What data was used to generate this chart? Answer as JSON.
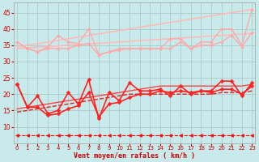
{
  "x": [
    0,
    1,
    2,
    3,
    4,
    5,
    6,
    7,
    8,
    9,
    10,
    11,
    12,
    13,
    14,
    15,
    16,
    17,
    18,
    19,
    20,
    21,
    22,
    23
  ],
  "series": [
    {
      "name": "pink_noisy_upper",
      "y": [
        36,
        34,
        33,
        34.5,
        38,
        36,
        35.5,
        40,
        32,
        33,
        34,
        34,
        34,
        34,
        34,
        37,
        37,
        34,
        36,
        36,
        40,
        40,
        35,
        46
      ],
      "color": "#ffaaaa",
      "lw": 1.0,
      "marker": "D",
      "ms": 2.0,
      "ls": "-",
      "zorder": 3
    },
    {
      "name": "pink_trend_upper",
      "y": [
        34.5,
        35.0,
        35.5,
        36.0,
        36.5,
        37.0,
        37.5,
        38.0,
        38.5,
        39.0,
        39.5,
        40.0,
        40.5,
        41.0,
        41.5,
        42.0,
        42.5,
        43.0,
        43.5,
        44.0,
        44.5,
        45.0,
        45.5,
        46.0
      ],
      "color": "#ffbbbb",
      "lw": 1.2,
      "marker": null,
      "ms": 0,
      "ls": "-",
      "zorder": 2
    },
    {
      "name": "pink_noisy_lower",
      "y": [
        36,
        34,
        33,
        34,
        34,
        34,
        35,
        35.5,
        32,
        33,
        33.5,
        34,
        34,
        34,
        34,
        34,
        36,
        34,
        35,
        35,
        36,
        38,
        34.5,
        39
      ],
      "color": "#ffaaaa",
      "lw": 1.0,
      "marker": "D",
      "ms": 2.0,
      "ls": "-",
      "zorder": 3
    },
    {
      "name": "pink_trend_lower",
      "y": [
        34.0,
        34.2,
        34.4,
        34.6,
        34.8,
        35.0,
        35.2,
        35.4,
        35.6,
        35.8,
        36.0,
        36.2,
        36.4,
        36.6,
        36.8,
        37.0,
        37.2,
        37.4,
        37.6,
        37.8,
        38.0,
        38.2,
        38.4,
        38.6
      ],
      "color": "#ffbbbb",
      "lw": 1.2,
      "marker": null,
      "ms": 0,
      "ls": "-",
      "zorder": 2
    },
    {
      "name": "red_noisy_upper",
      "y": [
        23,
        16,
        19.5,
        14,
        15,
        20.5,
        17,
        24.5,
        12.5,
        20.5,
        18,
        23.5,
        21,
        21,
        21.5,
        19.5,
        22.5,
        20,
        21,
        21,
        24,
        24,
        19.5,
        23.5
      ],
      "color": "#ff2222",
      "lw": 1.2,
      "marker": "D",
      "ms": 2.5,
      "ls": "-",
      "zorder": 4
    },
    {
      "name": "red_noisy_lower",
      "y": [
        23,
        16,
        16,
        13.5,
        14,
        15.5,
        16.5,
        20.5,
        13,
        17,
        17.5,
        19,
        20,
        20,
        21,
        20.5,
        21,
        20.5,
        21,
        20.5,
        21.5,
        21.5,
        20,
        22.5
      ],
      "color": "#ff2222",
      "lw": 1.2,
      "marker": "D",
      "ms": 2.5,
      "ls": "-",
      "zorder": 4
    },
    {
      "name": "red_trend_upper",
      "y": [
        15.5,
        16.0,
        16.5,
        17.0,
        17.5,
        18.0,
        18.5,
        19.0,
        19.5,
        20.0,
        20.5,
        21.0,
        21.5,
        22.0,
        22.5,
        22.5,
        22.5,
        22.5,
        22.5,
        22.5,
        22.5,
        22.5,
        22.5,
        23.0
      ],
      "color": "#ff4444",
      "lw": 1.0,
      "marker": null,
      "ms": 0,
      "ls": "-",
      "zorder": 2
    },
    {
      "name": "red_trend_lower",
      "y": [
        14.5,
        15.0,
        15.5,
        16.0,
        16.5,
        17.0,
        17.5,
        18.0,
        18.5,
        19.0,
        19.5,
        20.0,
        20.0,
        20.0,
        20.0,
        20.0,
        20.0,
        20.0,
        20.0,
        20.0,
        20.5,
        20.5,
        20.5,
        21.0
      ],
      "color": "#dd2222",
      "lw": 1.0,
      "marker": null,
      "ms": 0,
      "ls": "--",
      "zorder": 2
    },
    {
      "name": "arrow_line",
      "y": [
        7.5,
        7.5,
        7.5,
        7.5,
        7.5,
        7.5,
        7.5,
        7.5,
        7.5,
        7.5,
        7.5,
        7.5,
        7.5,
        7.5,
        7.5,
        7.5,
        7.5,
        7.5,
        7.5,
        7.5,
        7.5,
        7.5,
        7.5,
        7.5
      ],
      "color": "#ff0000",
      "lw": 0.8,
      "marker": "<",
      "ms": 3.0,
      "ls": "--",
      "zorder": 3
    }
  ],
  "xlabel": "Vent moyen/en rafales ( km/h )",
  "xlim": [
    -0.3,
    23.3
  ],
  "ylim": [
    5,
    48
  ],
  "yticks": [
    10,
    15,
    20,
    25,
    30,
    35,
    40,
    45
  ],
  "xticks": [
    0,
    1,
    2,
    3,
    4,
    5,
    6,
    7,
    8,
    9,
    10,
    11,
    12,
    13,
    14,
    15,
    16,
    17,
    18,
    19,
    20,
    21,
    22,
    23
  ],
  "bg_color": "#c8eaea",
  "grid_color": "#aacccc",
  "xlabel_color": "#cc0000",
  "tick_color": "#cc0000"
}
